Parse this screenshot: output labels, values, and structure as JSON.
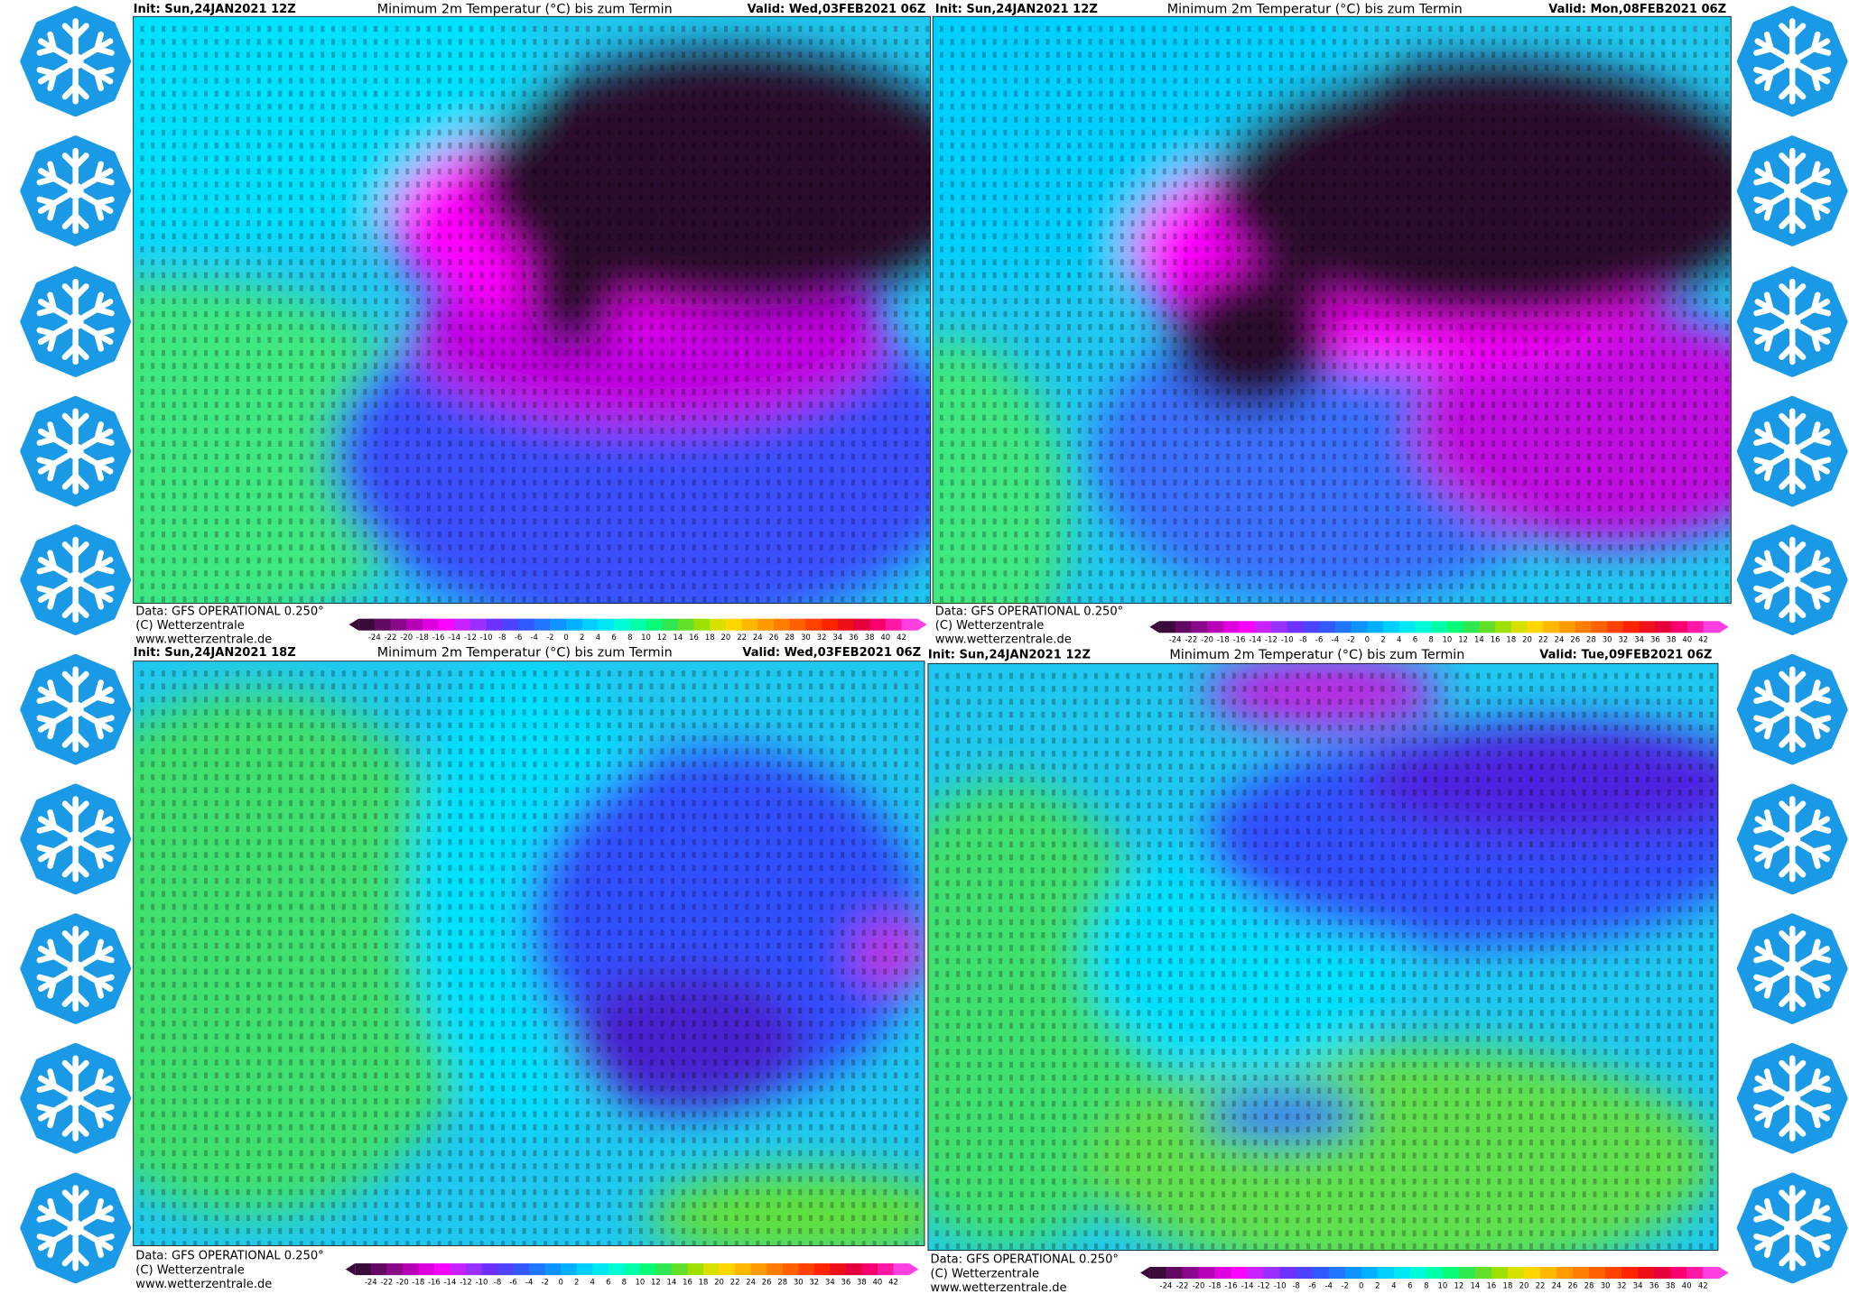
{
  "panels": [
    {
      "init": "Init: Sun,24JAN2021 12Z",
      "title": "Minimum 2m Temperatur (°C) bis zum Termin",
      "valid": "Valid: Wed,03FEB2021 06Z",
      "credits": [
        "Data: GFS OPERATIONAL 0.250°",
        "(C) Wetterzentrale",
        "www.wetterzentrale.de"
      ]
    },
    {
      "init": "Init: Sun,24JAN2021 12Z",
      "title": "Minimum 2m Temperatur (°C) bis zum Termin",
      "valid": "Valid: Mon,08FEB2021 06Z",
      "credits": [
        "Data: GFS OPERATIONAL 0.250°",
        "(C) Wetterzentrale",
        "www.wetterzentrale.de"
      ]
    },
    {
      "init": "Init: Sun,24JAN2021 18Z",
      "title": "Minimum 2m Temperatur (°C) bis zum Termin",
      "valid": "Valid: Wed,03FEB2021 06Z",
      "credits": [
        "Data: GFS OPERATIONAL 0.250°",
        "(C) Wetterzentrale",
        "www.wetterzentrale.de"
      ]
    },
    {
      "init": "Init: Sun,24JAN2021 12Z",
      "title": "Minimum 2m Temperatur (°C) bis zum Termin",
      "valid": "Valid: Tue,09FEB2021 06Z",
      "credits": [
        "Data: GFS OPERATIONAL 0.250°",
        "(C) Wetterzentrale",
        "www.wetterzentrale.de"
      ]
    }
  ],
  "colorbar_labels": [
    -24,
    -22,
    -20,
    -18,
    -16,
    -14,
    -12,
    -10,
    -8,
    -6,
    -4,
    -2,
    0,
    2,
    4,
    6,
    8,
    10,
    12,
    14,
    16,
    18,
    20,
    22,
    24,
    26,
    28,
    30,
    32,
    34,
    36,
    38,
    40,
    42
  ]
}
